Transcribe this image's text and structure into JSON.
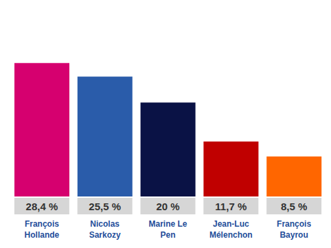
{
  "chart_data": {
    "type": "bar",
    "categories": [
      "François Hollande",
      "Nicolas Sarkozy",
      "Marine Le Pen",
      "Jean-Luc Mélenchon",
      "François Bayrou"
    ],
    "values": [
      28.4,
      25.5,
      20,
      11.7,
      8.5
    ],
    "value_labels": [
      "28,4 %",
      "25,5 %",
      "20 %",
      "11,7 %",
      "8,5 %"
    ],
    "colors": [
      "#d6006f",
      "#2a5caa",
      "#0a1245",
      "#c00000",
      "#ff6600"
    ],
    "data_labels": true,
    "tick_labels": "x"
  }
}
